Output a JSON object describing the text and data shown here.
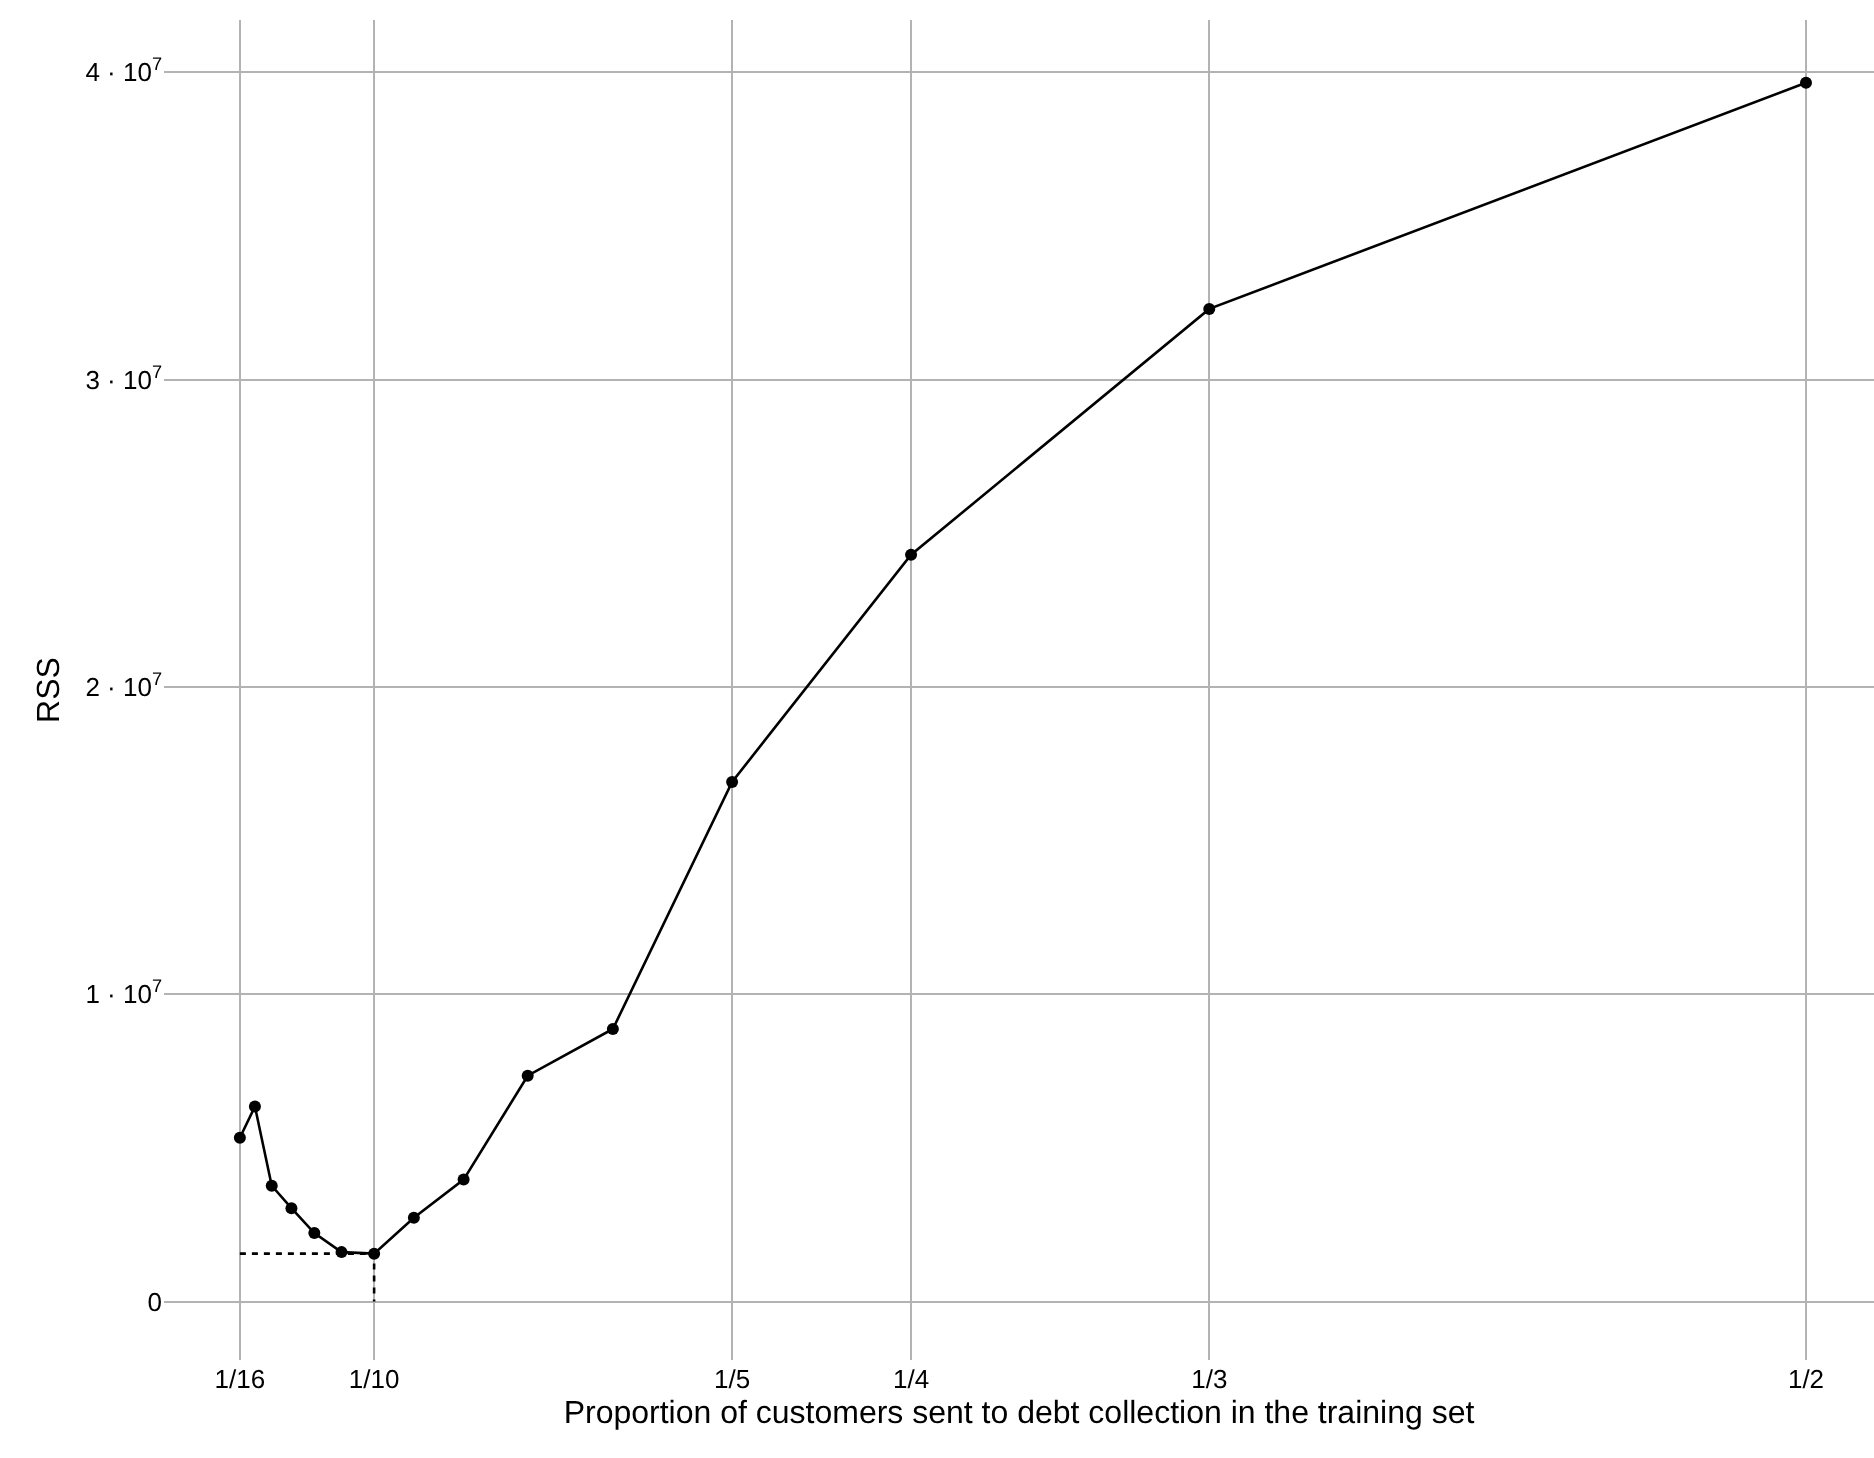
{
  "chart_data": {
    "type": "line",
    "xlabel": "Proportion of customers sent to debt collection in the training set",
    "ylabel": "RSS",
    "xlim": [
      0.0413,
      0.519
    ],
    "ylim": [
      -1900000,
      41700000
    ],
    "grid": true,
    "xticks": [
      {
        "value": 0.0625,
        "label": "1/16"
      },
      {
        "value": 0.1,
        "label": "1/10"
      },
      {
        "value": 0.2,
        "label": "1/5"
      },
      {
        "value": 0.25,
        "label": "1/4"
      },
      {
        "value": 0.3333,
        "label": "1/3"
      },
      {
        "value": 0.5,
        "label": "1/2"
      }
    ],
    "yticks": [
      {
        "value": 0,
        "label": "0"
      },
      {
        "value": 10000000,
        "label": "1 · 10$^{7}$"
      },
      {
        "value": 20000000,
        "label": "2 · 10$^{7}$"
      },
      {
        "value": 30000000,
        "label": "3 · 10$^{7}$"
      },
      {
        "value": 40000000,
        "label": "4 · 10$^{7}$"
      }
    ],
    "series": [
      {
        "color": "#000000",
        "marker": "circle",
        "line_style": "solid",
        "x": [
          0.0625,
          0.0667,
          0.0714,
          0.0769,
          0.0833,
          0.0909,
          0.1,
          0.1111,
          0.125,
          0.1429,
          0.1667,
          0.2,
          0.25,
          0.3333,
          0.5
        ],
        "values": [
          5330000,
          6350000,
          3770000,
          3040000,
          2230000,
          1610000,
          1560000,
          2730000,
          3970000,
          7350000,
          8870000,
          16910000,
          24300000,
          32300000,
          39660000
        ]
      },
      {
        "color": "#000000",
        "marker": "none",
        "line_style": "dotted",
        "x": [
          0.0625,
          0.1,
          0.1
        ],
        "values": [
          1560000,
          1560000,
          0
        ]
      }
    ]
  }
}
